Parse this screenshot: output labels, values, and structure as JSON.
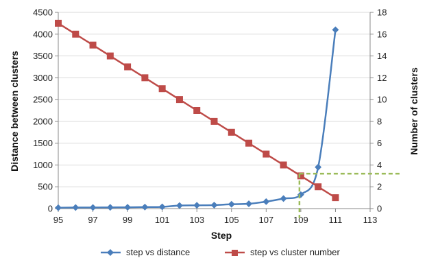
{
  "chart_data": {
    "type": "line",
    "xlabel": "Step",
    "ylabel": "Distance between clusters",
    "y2label": "Number of clusters",
    "xlim": [
      95,
      113
    ],
    "ylim": [
      0,
      4500
    ],
    "y2lim": [
      0,
      18
    ],
    "x_ticks": [
      "95",
      "97",
      "99",
      "101",
      "103",
      "105",
      "107",
      "109",
      "111",
      "113"
    ],
    "y_ticks": [
      "0",
      "500",
      "1000",
      "1500",
      "2000",
      "2500",
      "3000",
      "3500",
      "4000",
      "4500"
    ],
    "y2_ticks": [
      "0",
      "2",
      "4",
      "6",
      "8",
      "10",
      "12",
      "14",
      "16",
      "18"
    ],
    "grid": "horizontal",
    "legend_position": "bottom",
    "series": [
      {
        "name": "step vs distance",
        "axis": "left",
        "color": "#4a7ebb",
        "marker": "diamond",
        "x": [
          95,
          96,
          97,
          98,
          99,
          100,
          101,
          102,
          103,
          104,
          105,
          106,
          107,
          108,
          109,
          110,
          111
        ],
        "values": [
          20,
          25,
          25,
          28,
          30,
          35,
          40,
          70,
          75,
          80,
          100,
          110,
          160,
          230,
          320,
          950,
          4100
        ]
      },
      {
        "name": "step vs cluster number",
        "axis": "right",
        "color": "#be4b48",
        "marker": "square",
        "x": [
          95,
          96,
          97,
          98,
          99,
          100,
          101,
          102,
          103,
          104,
          105,
          106,
          107,
          108,
          109,
          110,
          111
        ],
        "values": [
          17,
          16,
          15,
          14,
          13,
          12,
          11,
          10,
          9,
          8,
          7,
          6,
          5,
          4,
          3,
          2,
          1
        ]
      }
    ],
    "annotation": {
      "type": "dashed-guide",
      "color": "#9bbb59",
      "x": 109,
      "y2": 3.2
    }
  }
}
